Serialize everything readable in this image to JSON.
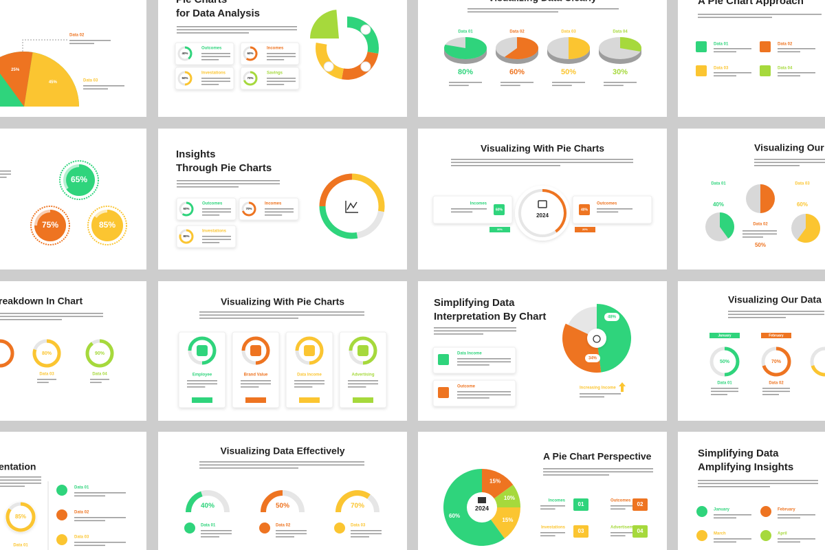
{
  "slides": [
    {
      "items": [
        {
          "name": "Data 02",
          "value": 25,
          "label": "25%"
        },
        {
          "name": "Data 03",
          "value": 45,
          "label": "45%"
        }
      ]
    },
    {
      "title": [
        "Pie Charts",
        "for Data Analysis"
      ],
      "items": [
        {
          "name": "Outcomes",
          "value": 40,
          "label": "40%"
        },
        {
          "name": "Incomes",
          "value": 60,
          "label": "60%"
        },
        {
          "name": "Investations",
          "value": 50,
          "label": "50%"
        },
        {
          "name": "Savings",
          "value": 70,
          "label": "70%"
        }
      ]
    },
    {
      "title": [
        "Visualizing Data Clearly"
      ],
      "items": [
        {
          "name": "Data 01",
          "value": 80,
          "label": "80%"
        },
        {
          "name": "Data 02",
          "value": 60,
          "label": "60%"
        },
        {
          "name": "Data 03",
          "value": 50,
          "label": "50%"
        },
        {
          "name": "Data 04",
          "value": 30,
          "label": "30%"
        }
      ]
    },
    {
      "title": [
        "A Pie Chart Approach"
      ],
      "items": [
        {
          "name": "Data 01"
        },
        {
          "name": "Data 02"
        },
        {
          "name": "Data 03"
        },
        {
          "name": "Data 04"
        }
      ]
    },
    {
      "items": [
        {
          "value": 65,
          "label": "65%"
        },
        {
          "value": 75,
          "label": "75%"
        },
        {
          "value": 85,
          "label": "85%"
        }
      ]
    },
    {
      "title": [
        "Insights",
        "Through Pie Charts"
      ],
      "items": [
        {
          "name": "Outcomes",
          "value": 60,
          "label": "60%"
        },
        {
          "name": "Incomes",
          "value": 70,
          "label": "70%"
        },
        {
          "name": "Investations",
          "value": 80,
          "label": "80%"
        }
      ]
    },
    {
      "title": [
        "Visualizing With Pie Charts"
      ],
      "center": "2024",
      "items": [
        {
          "name": "Incomes",
          "value": 60,
          "label": "60%",
          "change": "30%"
        },
        {
          "name": "Outcomes",
          "value": 40,
          "label": "40%",
          "change": "20%"
        }
      ]
    },
    {
      "title": [
        "Visualizing Our"
      ],
      "items": [
        {
          "name": "Data 01",
          "value": 40,
          "label": "40%"
        },
        {
          "name": "Data 02",
          "value": 50,
          "label": "50%"
        },
        {
          "name": "Data 03",
          "value": 60,
          "label": "60%"
        }
      ]
    },
    {
      "title": [
        "reakdown In Chart"
      ],
      "items": [
        {
          "name": "Data 03",
          "value": 80,
          "label": "80%"
        },
        {
          "name": "Data 04",
          "value": 90,
          "label": "90%"
        }
      ]
    },
    {
      "title": [
        "Visualizing With Pie Charts"
      ],
      "items": [
        {
          "name": "Employee"
        },
        {
          "name": "Brand Value"
        },
        {
          "name": "Data Income"
        },
        {
          "name": "Advertising"
        }
      ]
    },
    {
      "title": [
        "Simplifying Data",
        "Interpretation By Chart"
      ],
      "items": [
        {
          "name": "Data Income"
        },
        {
          "name": "Outcome"
        }
      ],
      "pie": [
        {
          "value": 48,
          "label": "48%"
        },
        {
          "value": 34,
          "label": "34%"
        }
      ],
      "note": "Increasing Income"
    },
    {
      "title": [
        "Visualizing Our Data"
      ],
      "items": [
        {
          "month": "January",
          "name": "Data 01",
          "value": 50,
          "label": "50%"
        },
        {
          "month": "February",
          "name": "Data 02",
          "value": 70,
          "label": "70%"
        }
      ]
    },
    {
      "title": [
        "entation"
      ],
      "ring": {
        "value": 85,
        "label": "85%",
        "name": "Data 01"
      },
      "items": [
        {
          "name": "Data 01"
        },
        {
          "name": "Data 02"
        },
        {
          "name": "Data 03"
        }
      ]
    },
    {
      "title": [
        "Visualizing Data Effectively"
      ],
      "items": [
        {
          "name": "Data 01",
          "value": 40,
          "label": "40%"
        },
        {
          "name": "Data 02",
          "value": 50,
          "label": "50%"
        },
        {
          "name": "Data 03",
          "value": 70,
          "label": "70%"
        }
      ]
    },
    {
      "title": [
        "A Pie Chart Perspective"
      ],
      "center": "2024",
      "pie": [
        {
          "value": 15,
          "label": "15%"
        },
        {
          "value": 10,
          "label": "10%"
        },
        {
          "value": 15,
          "label": "15%"
        },
        {
          "value": 60,
          "label": "60%"
        }
      ],
      "items": [
        {
          "name": "Incomes",
          "num": "01"
        },
        {
          "name": "Outcomes",
          "num": "02"
        },
        {
          "name": "Investations",
          "num": "03"
        },
        {
          "name": "Advertisement",
          "num": "04"
        }
      ]
    },
    {
      "title": [
        "Simplifying Data",
        "Amplifying Insights"
      ],
      "items": [
        {
          "name": "January"
        },
        {
          "name": "February"
        },
        {
          "name": "March"
        },
        {
          "name": "April"
        }
      ]
    }
  ]
}
